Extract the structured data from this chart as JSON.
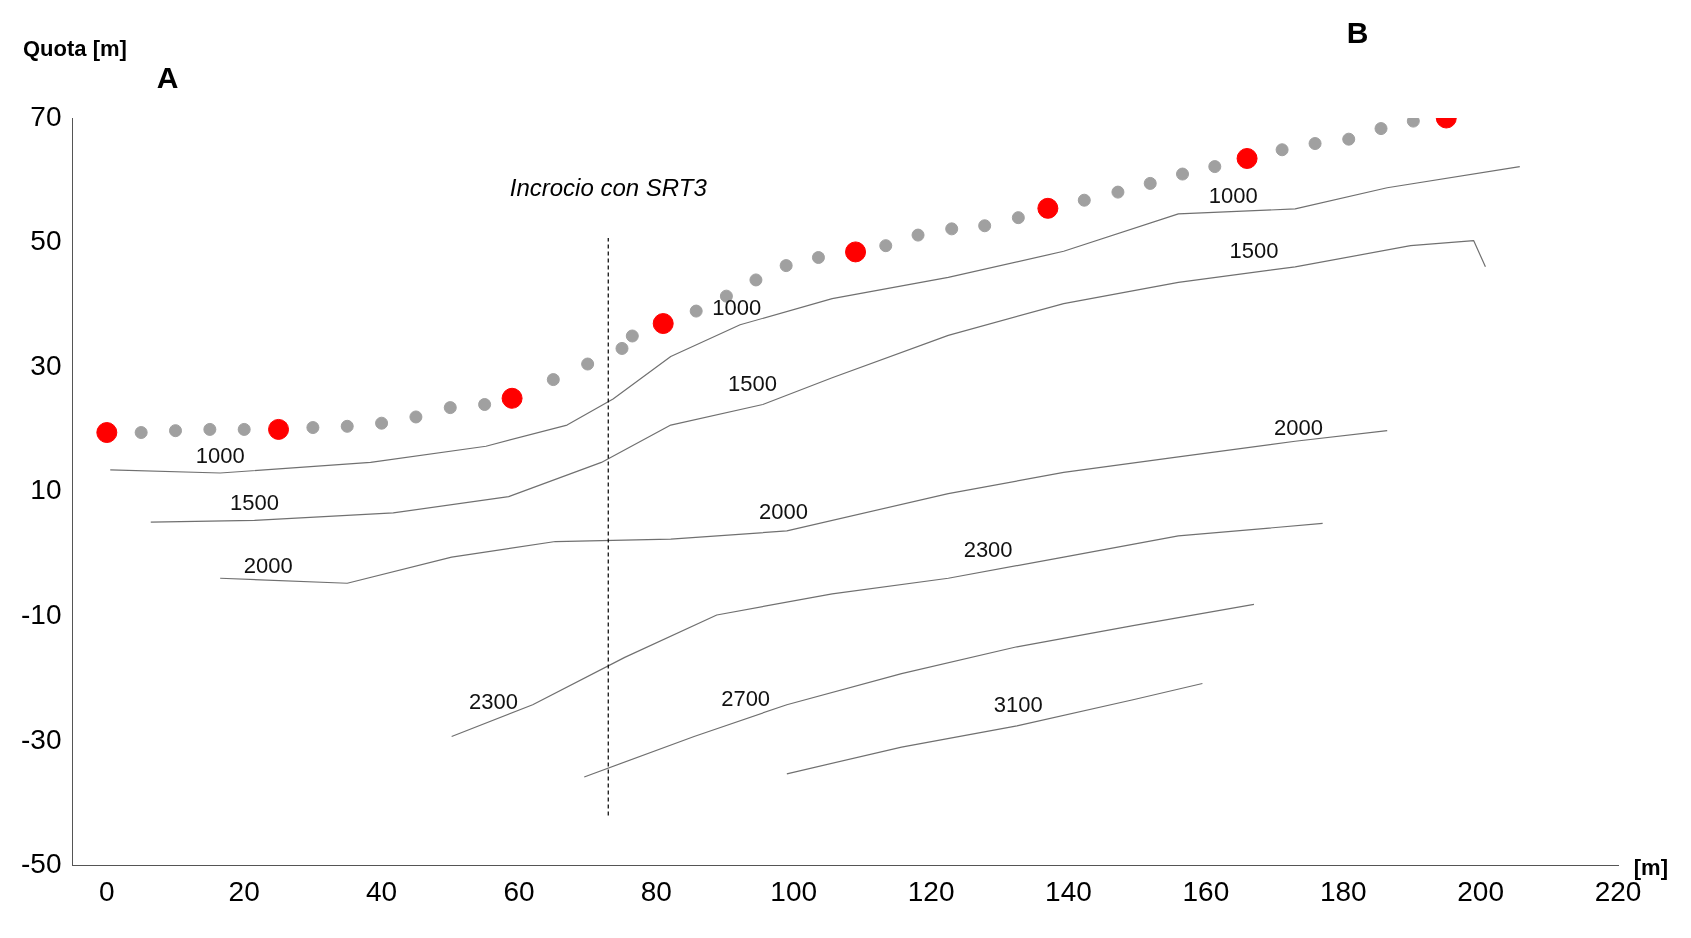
{
  "chart_data": {
    "type": "line",
    "ylabel": "Quota [m]",
    "xlabel": "[m]",
    "xlim": [
      -5,
      220
    ],
    "xticks": [
      0,
      20,
      40,
      60,
      80,
      100,
      120,
      140,
      160,
      180,
      200,
      220
    ],
    "ylim": [
      -50,
      70
    ],
    "yticks": [
      -50,
      -30,
      -10,
      10,
      30,
      50,
      70
    ],
    "grid": false,
    "legend": false,
    "series": [
      {
        "marker": "none",
        "color": "#707070",
        "x": [
          0.5,
          16.5,
          38.4,
          55.2,
          67,
          73.7,
          82.1,
          92.2,
          105.6,
          122.5,
          139.3,
          156,
          173,
          186.4,
          205.7
        ],
        "values": [
          13.5,
          13,
          14.7,
          17.3,
          20.7,
          24.9,
          31.7,
          36.8,
          41,
          44.4,
          48.6,
          54.6,
          55.4,
          58.8,
          62.2
        ]
      },
      {
        "marker": "none",
        "color": "#707070",
        "x": [
          6.4,
          21.5,
          41.7,
          58.5,
          72,
          82.1,
          95.5,
          105.6,
          122.5,
          139.3,
          156,
          173,
          189.8,
          199,
          200.7
        ],
        "values": [
          5.1,
          5.4,
          6.6,
          9.2,
          14.7,
          20.7,
          24,
          28.3,
          35.1,
          40.2,
          43.6,
          46.1,
          49.5,
          50.3,
          46.1
        ]
      },
      {
        "marker": "none",
        "color": "#707070",
        "x": [
          16.5,
          35,
          50.2,
          65.3,
          82.1,
          99,
          122.5,
          139.3,
          156,
          173,
          186.4
        ],
        "values": [
          -3.9,
          -4.7,
          -0.5,
          2,
          2.4,
          3.7,
          9.7,
          13.1,
          15.6,
          18.1,
          19.8
        ]
      },
      {
        "marker": "none",
        "color": "#707070",
        "x": [
          50.2,
          62,
          75.4,
          88.8,
          105.6,
          122.5,
          139.3,
          156,
          177
        ],
        "values": [
          -29.3,
          -24.2,
          -16.6,
          -9.8,
          -6.4,
          -3.9,
          -0.5,
          2.9,
          4.9
        ]
      },
      {
        "marker": "none",
        "color": "#707070",
        "x": [
          69.5,
          85.5,
          99,
          115.7,
          132.5,
          149.4,
          167
        ],
        "values": [
          -35.8,
          -29.3,
          -24.2,
          -19.2,
          -14.9,
          -11.5,
          -8.1
        ]
      },
      {
        "marker": "none",
        "color": "#707070",
        "x": [
          99,
          115.7,
          132.5,
          149.4,
          159.5
        ],
        "values": [
          -35.3,
          -31,
          -27.6,
          -23.4,
          -20.8
        ]
      },
      {
        "type": "scatter",
        "marker": "circle",
        "color": "#a0a0a0",
        "x": [
          5,
          10,
          15,
          20,
          30,
          35,
          40,
          45,
          50,
          55,
          65,
          70,
          75,
          76.5,
          85.8,
          90.2,
          94.5,
          98.9,
          103.6,
          113.4,
          118.1,
          123,
          127.8,
          132.7,
          142.3,
          147.2,
          151.9,
          156.6,
          161.3,
          171.1,
          175.9,
          180.8,
          185.5,
          190.2
        ],
        "values": [
          19.5,
          19.8,
          20,
          20,
          20.3,
          20.5,
          21,
          22,
          23.5,
          24,
          28,
          30.5,
          33,
          35,
          39,
          41.4,
          44,
          46.3,
          47.6,
          49.5,
          51.2,
          52.2,
          52.7,
          54,
          56.8,
          58.1,
          59.5,
          61,
          62.2,
          64.9,
          65.9,
          66.6,
          68.3,
          69.5
        ]
      },
      {
        "type": "scatter",
        "marker": "circle",
        "color": "#ff0000",
        "x": [
          0,
          25,
          59,
          81,
          109,
          137,
          166,
          195
        ],
        "values": [
          19.5,
          20,
          25,
          37,
          48.5,
          55.5,
          63.5,
          70
        ]
      }
    ],
    "ref_lines": [
      {
        "axis": "x",
        "value": 73,
        "label": "Incrocio con SRT3",
        "line_style": "dashed",
        "color": "#000000"
      }
    ],
    "annotations": [
      "A",
      "B",
      {
        "text": "1000",
        "x": 16.5,
        "y": 13
      },
      {
        "text": "1000",
        "x": 91.7,
        "y": 36.8
      },
      {
        "text": "1000",
        "x": 164,
        "y": 54.8
      },
      {
        "text": "1500",
        "x": 21.5,
        "y": 5.5
      },
      {
        "text": "1500",
        "x": 94,
        "y": 24.5
      },
      {
        "text": "1500",
        "x": 167,
        "y": 46
      },
      {
        "text": "2000",
        "x": 23.5,
        "y": -4.7
      },
      {
        "text": "2000",
        "x": 98.5,
        "y": 4
      },
      {
        "text": "2000",
        "x": 173.5,
        "y": 17.5
      },
      {
        "text": "2300",
        "x": 56.3,
        "y": -26.5
      },
      {
        "text": "2300",
        "x": 128.3,
        "y": -2
      },
      {
        "text": "2700",
        "x": 93,
        "y": -26
      },
      {
        "text": "3100",
        "x": 132.7,
        "y": -27
      }
    ]
  }
}
